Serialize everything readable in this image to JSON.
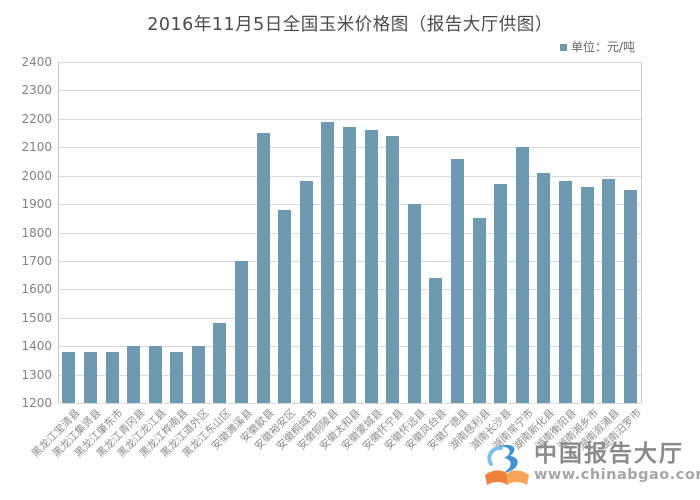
{
  "title": "2016年11月5日全国玉米价格图（报告大厅供图）",
  "legend": {
    "label": "单位：元/吨"
  },
  "colors": {
    "bar": "#6d9ab0",
    "grid": "#d9d9d9",
    "axis_border": "#c9c9c9",
    "y_tick_text": "#828282",
    "x_tick_text": "#8c8c8c",
    "title_text": "#4a4a4a"
  },
  "chart_data": {
    "type": "bar",
    "title": "2016年11月5日全国玉米价格图（报告大厅供图）",
    "xlabel": "",
    "ylabel": "",
    "unit": "元/吨",
    "legend": [
      "单位：元/吨"
    ],
    "legend_position": "top-right",
    "grid": true,
    "ylim": [
      1200,
      2400
    ],
    "ytick_step": 100,
    "bar_color": "#6d9ab0",
    "categories": [
      "黑龙江宝清县",
      "黑龙江集贤县",
      "黑龙江肇东市",
      "黑龙江青冈县",
      "黑龙江龙江县",
      "黑龙江桦南县",
      "黑龙江道外区",
      "黑龙江东山区",
      "安徽濉溪县",
      "安徽歙县",
      "安徽裕安区",
      "安徽桐城市",
      "安徽铜陵县",
      "安徽太和县",
      "安徽蒙城县",
      "安徽怀宁县",
      "安徽怀远县",
      "安徽凤台县",
      "安徽广德县",
      "湖南慈利县",
      "湖南长沙县",
      "湖南常宁市",
      "湖南新化县",
      "湖南衡阳县",
      "湖南湘乡市",
      "湖南溆浦县",
      "湖南汨罗市"
    ],
    "values": [
      1380,
      1380,
      1380,
      1400,
      1400,
      1380,
      1400,
      1480,
      1700,
      2150,
      1880,
      1980,
      2190,
      2170,
      2160,
      2140,
      1900,
      1640,
      2060,
      1850,
      1970,
      2100,
      2010,
      1980,
      1960,
      1990,
      1950
    ]
  },
  "watermark": {
    "name": "中国报告大厅",
    "url": "www.chinabgao.com"
  }
}
